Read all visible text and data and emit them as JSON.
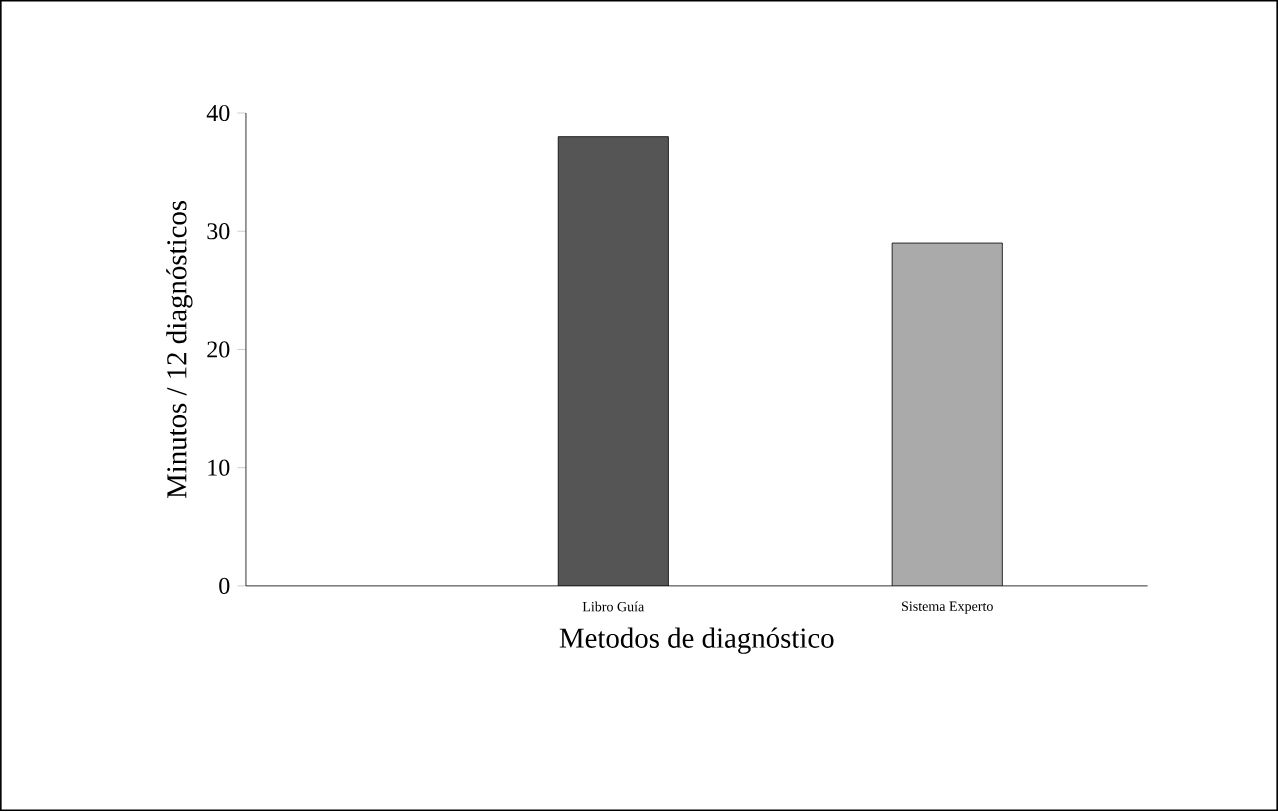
{
  "chart_data": {
    "type": "bar",
    "xlabel": "Metodos de diagnóstico",
    "ylabel": "Minutos / 12 diagnósticos",
    "categories": [
      null,
      "Libro Guía",
      "Sistema Experto"
    ],
    "values": [
      null,
      38,
      29
    ],
    "colors": [
      "#ffffff",
      "#555555",
      "#aaaaaa"
    ],
    "ylim": [
      0,
      40
    ],
    "yticks": [
      0,
      10,
      20,
      30,
      40
    ]
  }
}
